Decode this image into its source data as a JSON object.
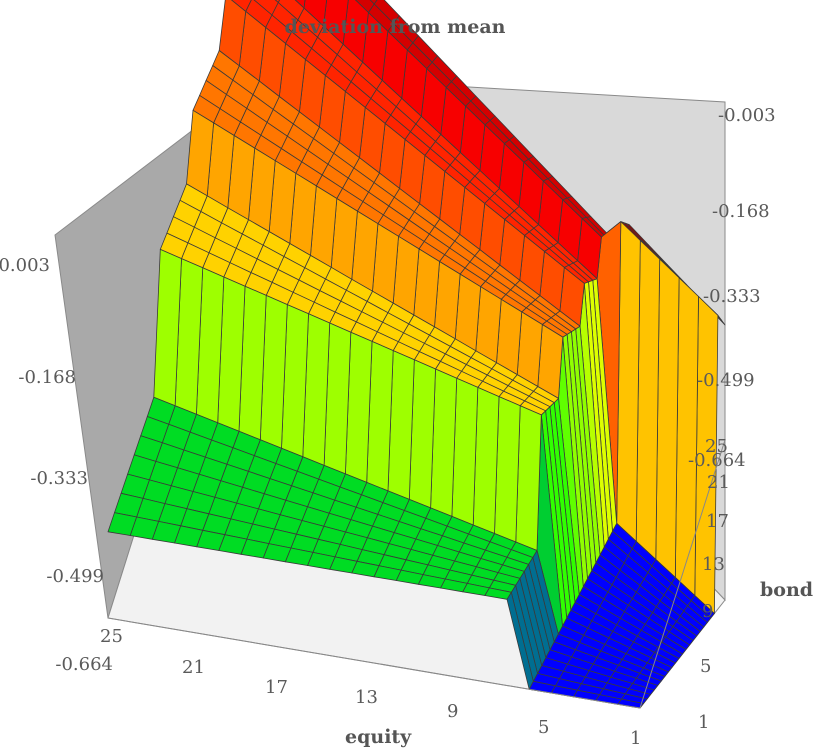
{
  "chart_data": {
    "type": "surface3d",
    "title": "deviation from mean",
    "xlabel": "equity",
    "ylabel": "bond",
    "zlabel": "",
    "x_ticks": [
      "25",
      "21",
      "17",
      "13",
      "9",
      "5",
      "1"
    ],
    "y_ticks": [
      "1",
      "5",
      "9",
      "13",
      "17",
      "21",
      "25"
    ],
    "z_ticks": [
      "-0.003",
      "-0.168",
      "-0.333",
      "-0.499",
      "-0.664"
    ],
    "xlim": [
      1,
      25
    ],
    "ylim": [
      1,
      25
    ],
    "zlim": [
      -0.664,
      -0.003
    ],
    "x_steps": 25,
    "y_steps": 25,
    "surface_description_levels": [
      {
        "equity_min": 1,
        "equity_max": 6,
        "bond_min": 1,
        "bond_max": 25,
        "approx_value": -0.664
      },
      {
        "equity_min": 7,
        "equity_max": 25,
        "bond_min": 1,
        "bond_max": 8,
        "approx_value": -0.55
      },
      {
        "equity_min": 7,
        "equity_max": 25,
        "bond_min": 9,
        "bond_max": 13,
        "approx_value": -0.35
      },
      {
        "equity_min": 7,
        "equity_max": 25,
        "bond_min": 14,
        "bond_max": 18,
        "approx_value": -0.25
      },
      {
        "equity_min": 7,
        "equity_max": 25,
        "bond_min": 19,
        "bond_max": 22,
        "approx_value": -0.17
      },
      {
        "equity_min": 7,
        "equity_max": 25,
        "bond_min": 23,
        "bond_max": 25,
        "approx_value": -0.08
      },
      {
        "equity_min": 1,
        "equity_max": 6,
        "bond_min": 23,
        "bond_max": 25,
        "approx_value": -0.003
      }
    ],
    "colormap": [
      "#0000ff",
      "#00ff00",
      "#ffff00",
      "#ff8800",
      "#ff0000",
      "#990000"
    ]
  }
}
